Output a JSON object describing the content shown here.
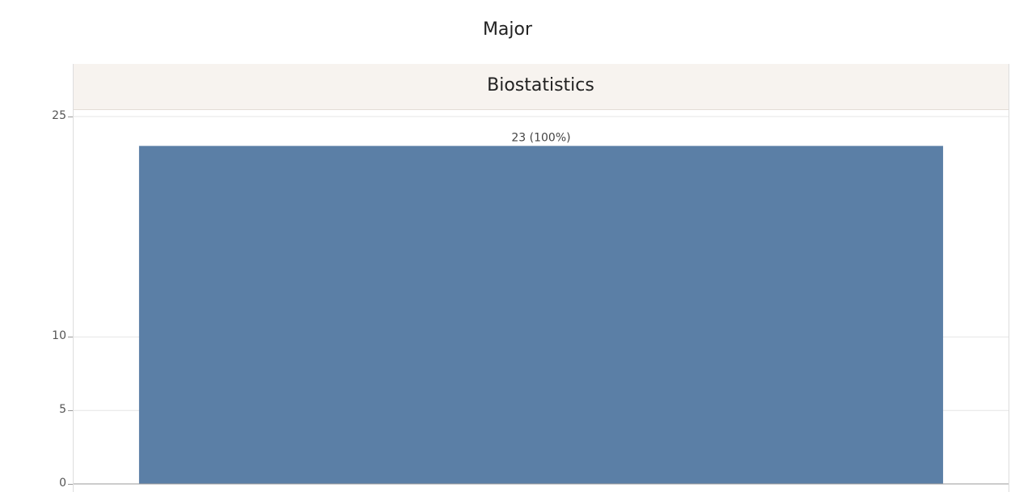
{
  "chart_data": {
    "type": "bar",
    "column_header": "Major",
    "panels": [
      "Biostatistics"
    ],
    "categories": [
      ""
    ],
    "values": [
      23
    ],
    "data_labels": [
      "23 (100%)"
    ],
    "ylim": [
      0,
      25
    ],
    "yticks": [
      0,
      5,
      10,
      25
    ],
    "xlabel": "",
    "ylabel": "",
    "grid": true
  }
}
